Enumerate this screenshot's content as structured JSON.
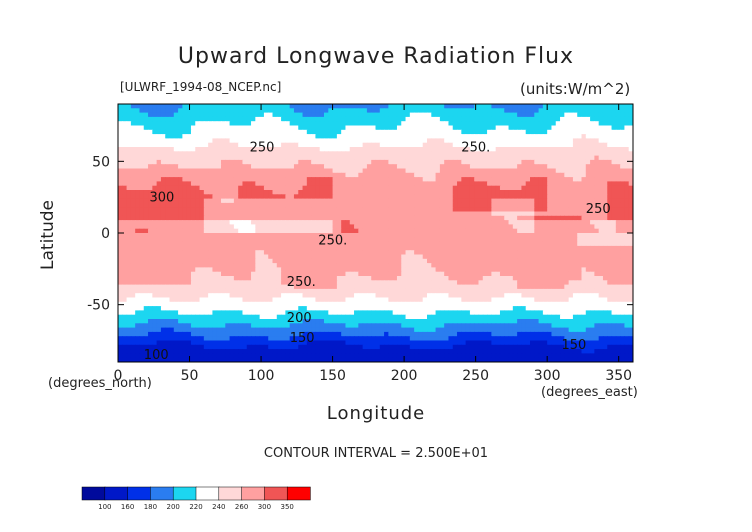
{
  "header": {
    "title": "Upward Longwave Radiation Flux",
    "file": "[ULWRF_1994-08_NCEP.nc]",
    "units": "(units:W/m^2)"
  },
  "footer": {
    "contour_interval": "CONTOUR INTERVAL = 2.500E+01"
  },
  "chart_data": {
    "type": "heatmap",
    "title": "Upward Longwave Radiation Flux",
    "xlabel": "Longitude",
    "ylabel": "Latitude",
    "x_unit": "(degrees_north)",
    "x_unit_2": "(degrees_east)",
    "xlim": [
      0,
      360
    ],
    "ylim": [
      -90,
      90
    ],
    "xticks": [
      0,
      50,
      100,
      150,
      200,
      250,
      300,
      350
    ],
    "yticks": [
      -50,
      0,
      50
    ],
    "colorbar": {
      "levels": [
        100,
        160,
        180,
        200,
        220,
        240,
        260,
        300,
        350
      ],
      "colors": [
        "#000a9c",
        "#0018c8",
        "#0030e8",
        "#2a7df0",
        "#1cd6f0",
        "#ffffff",
        "#ffd8d8",
        "#ffa0a0",
        "#f05555",
        "#ff0000"
      ]
    },
    "contour_labels": [
      {
        "lon": 92,
        "lat": 57,
        "text": "250"
      },
      {
        "lon": 240,
        "lat": 57,
        "text": "250."
      },
      {
        "lon": 22,
        "lat": 22,
        "text": "300"
      },
      {
        "lon": 327,
        "lat": 14,
        "text": "250"
      },
      {
        "lon": 140,
        "lat": -8,
        "text": "250."
      },
      {
        "lon": 118,
        "lat": -37,
        "text": "250."
      },
      {
        "lon": 118,
        "lat": -62,
        "text": "200"
      },
      {
        "lon": 120,
        "lat": -76,
        "text": "150"
      },
      {
        "lon": 18,
        "lat": -88,
        "text": "100"
      },
      {
        "lon": 310,
        "lat": -81,
        "text": "150"
      }
    ]
  }
}
